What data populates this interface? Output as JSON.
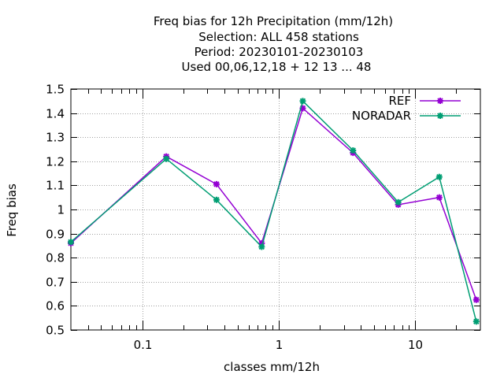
{
  "chart_data": {
    "type": "line",
    "title_lines": [
      "Freq bias  for 12h Precipitation (mm/12h)",
      "Selection: ALL    458 stations",
      "Period: 20230101-20230103",
      "Used  00,06,12,18 + 12 13 ... 48"
    ],
    "xlabel": "classes mm/12h",
    "ylabel": "Freq bias",
    "x_scale": "log",
    "xlim": [
      0.03,
      30
    ],
    "ylim": [
      0.5,
      1.5
    ],
    "x_ticks": [
      {
        "value": 0.1,
        "label": "0.1"
      },
      {
        "value": 1,
        "label": "1"
      },
      {
        "value": 10,
        "label": "10"
      }
    ],
    "y_ticks": [
      {
        "value": 0.5,
        "label": "0.5"
      },
      {
        "value": 0.6,
        "label": "0.6"
      },
      {
        "value": 0.7,
        "label": "0.7"
      },
      {
        "value": 0.8,
        "label": "0.8"
      },
      {
        "value": 0.9,
        "label": "0.9"
      },
      {
        "value": 1.0,
        "label": "1"
      },
      {
        "value": 1.1,
        "label": "1.1"
      },
      {
        "value": 1.2,
        "label": "1.2"
      },
      {
        "value": 1.3,
        "label": "1.3"
      },
      {
        "value": 1.4,
        "label": "1.4"
      },
      {
        "value": 1.5,
        "label": "1.5"
      }
    ],
    "grid": true,
    "legend_position": "top-right",
    "x": [
      0.03,
      0.15,
      0.35,
      0.75,
      1.5,
      3.5,
      7.5,
      15,
      28
    ],
    "series": [
      {
        "name": "REF",
        "color": "#9400d3",
        "values": [
          0.86,
          1.22,
          1.105,
          0.86,
          1.42,
          1.235,
          1.02,
          1.05,
          0.625
        ]
      },
      {
        "name": "NORADAR",
        "color": "#009e73",
        "values": [
          0.865,
          1.21,
          1.04,
          0.845,
          1.45,
          1.245,
          1.03,
          1.135,
          0.535
        ]
      }
    ]
  }
}
